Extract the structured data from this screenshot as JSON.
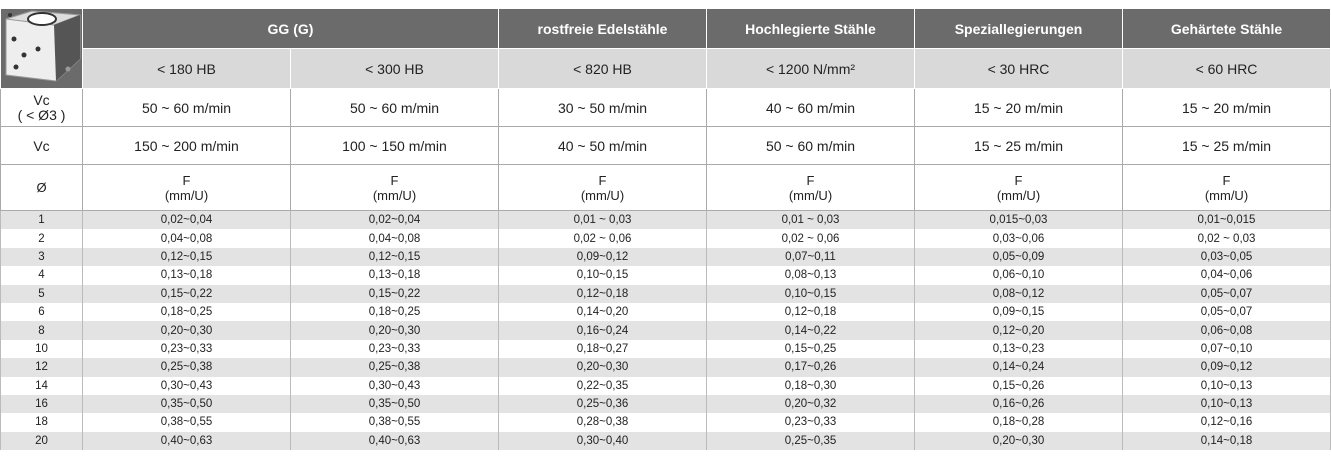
{
  "header": {
    "groups": [
      "GG (G)",
      "rostfreie Edelstähle",
      "Hochlegierte Stähle",
      "Speziallegierungen",
      "Gehärtete Stähle"
    ],
    "hardness": [
      "< 180 HB",
      "< 300 HB",
      "< 820 HB",
      "< 1200 N/mm²",
      "< 30 HRC",
      "< 60 HRC"
    ]
  },
  "vc_small": {
    "label": "Vc",
    "sublabel": "( < Ø3 )",
    "values": [
      "50 ~ 60 m/min",
      "50 ~ 60 m/min",
      "30 ~ 50 m/min",
      "40 ~ 60 m/min",
      "15 ~ 20 m/min",
      "15 ~ 20 m/min"
    ]
  },
  "vc": {
    "label": "Vc",
    "values": [
      "150 ~ 200 m/min",
      "100 ~ 150 m/min",
      "40 ~ 50 m/min",
      "50 ~ 60 m/min",
      "15 ~ 25 m/min",
      "15 ~ 25 m/min"
    ]
  },
  "feed_header": {
    "label": "Ø",
    "columns": [
      [
        "F",
        "(mm/U)"
      ],
      [
        "F",
        "(mm/U)"
      ],
      [
        "F",
        "(mm/U)"
      ],
      [
        "F",
        "(mm/U)"
      ],
      [
        "F",
        "(mm/U)"
      ],
      [
        "F",
        "(mm/U)"
      ]
    ]
  },
  "table": {
    "rows": [
      [
        "1",
        "0,02~0,04",
        "0,02~0,04",
        "0,01 ~ 0,03",
        "0,01 ~ 0,03",
        "0,015~0,03",
        "0,01~0,015"
      ],
      [
        "2",
        "0,04~0,08",
        "0,04~0,08",
        "0,02 ~ 0,06",
        "0,02 ~ 0,06",
        "0,03~0,06",
        "0,02 ~ 0,03"
      ],
      [
        "3",
        "0,12~0,15",
        "0,12~0,15",
        "0,09~0,12",
        "0,07~0,11",
        "0,05~0,09",
        "0,03~0,05"
      ],
      [
        "4",
        "0,13~0,18",
        "0,13~0,18",
        "0,10~0,15",
        "0,08~0,13",
        "0,06~0,10",
        "0,04~0,06"
      ],
      [
        "5",
        "0,15~0,22",
        "0,15~0,22",
        "0,12~0,18",
        "0,10~0,15",
        "0,08~0,12",
        "0,05~0,07"
      ],
      [
        "6",
        "0,18~0,25",
        "0,18~0,25",
        "0,14~0,20",
        "0,12~0,18",
        "0,09~0,15",
        "0,05~0,07"
      ],
      [
        "8",
        "0,20~0,30",
        "0,20~0,30",
        "0,16~0,24",
        "0,14~0,22",
        "0,12~0,20",
        "0,06~0,08"
      ],
      [
        "10",
        "0,23~0,33",
        "0,23~0,33",
        "0,18~0,27",
        "0,15~0,25",
        "0,13~0,23",
        "0,07~0,10"
      ],
      [
        "12",
        "0,25~0,38",
        "0,25~0,38",
        "0,20~0,30",
        "0,17~0,26",
        "0,14~0,24",
        "0,09~0,12"
      ],
      [
        "14",
        "0,30~0,43",
        "0,30~0,43",
        "0,22~0,35",
        "0,18~0,30",
        "0,15~0,26",
        "0,10~0,13"
      ],
      [
        "16",
        "0,35~0,50",
        "0,35~0,50",
        "0,25~0,36",
        "0,20~0,32",
        "0,16~0,26",
        "0,10~0,13"
      ],
      [
        "18",
        "0,38~0,55",
        "0,38~0,55",
        "0,28~0,38",
        "0,23~0,33",
        "0,18~0,28",
        "0,12~0,16"
      ],
      [
        "20",
        "0,40~0,63",
        "0,40~0,63",
        "0,30~0,40",
        "0,25~0,35",
        "0,20~0,30",
        "0,14~0,18"
      ]
    ]
  }
}
